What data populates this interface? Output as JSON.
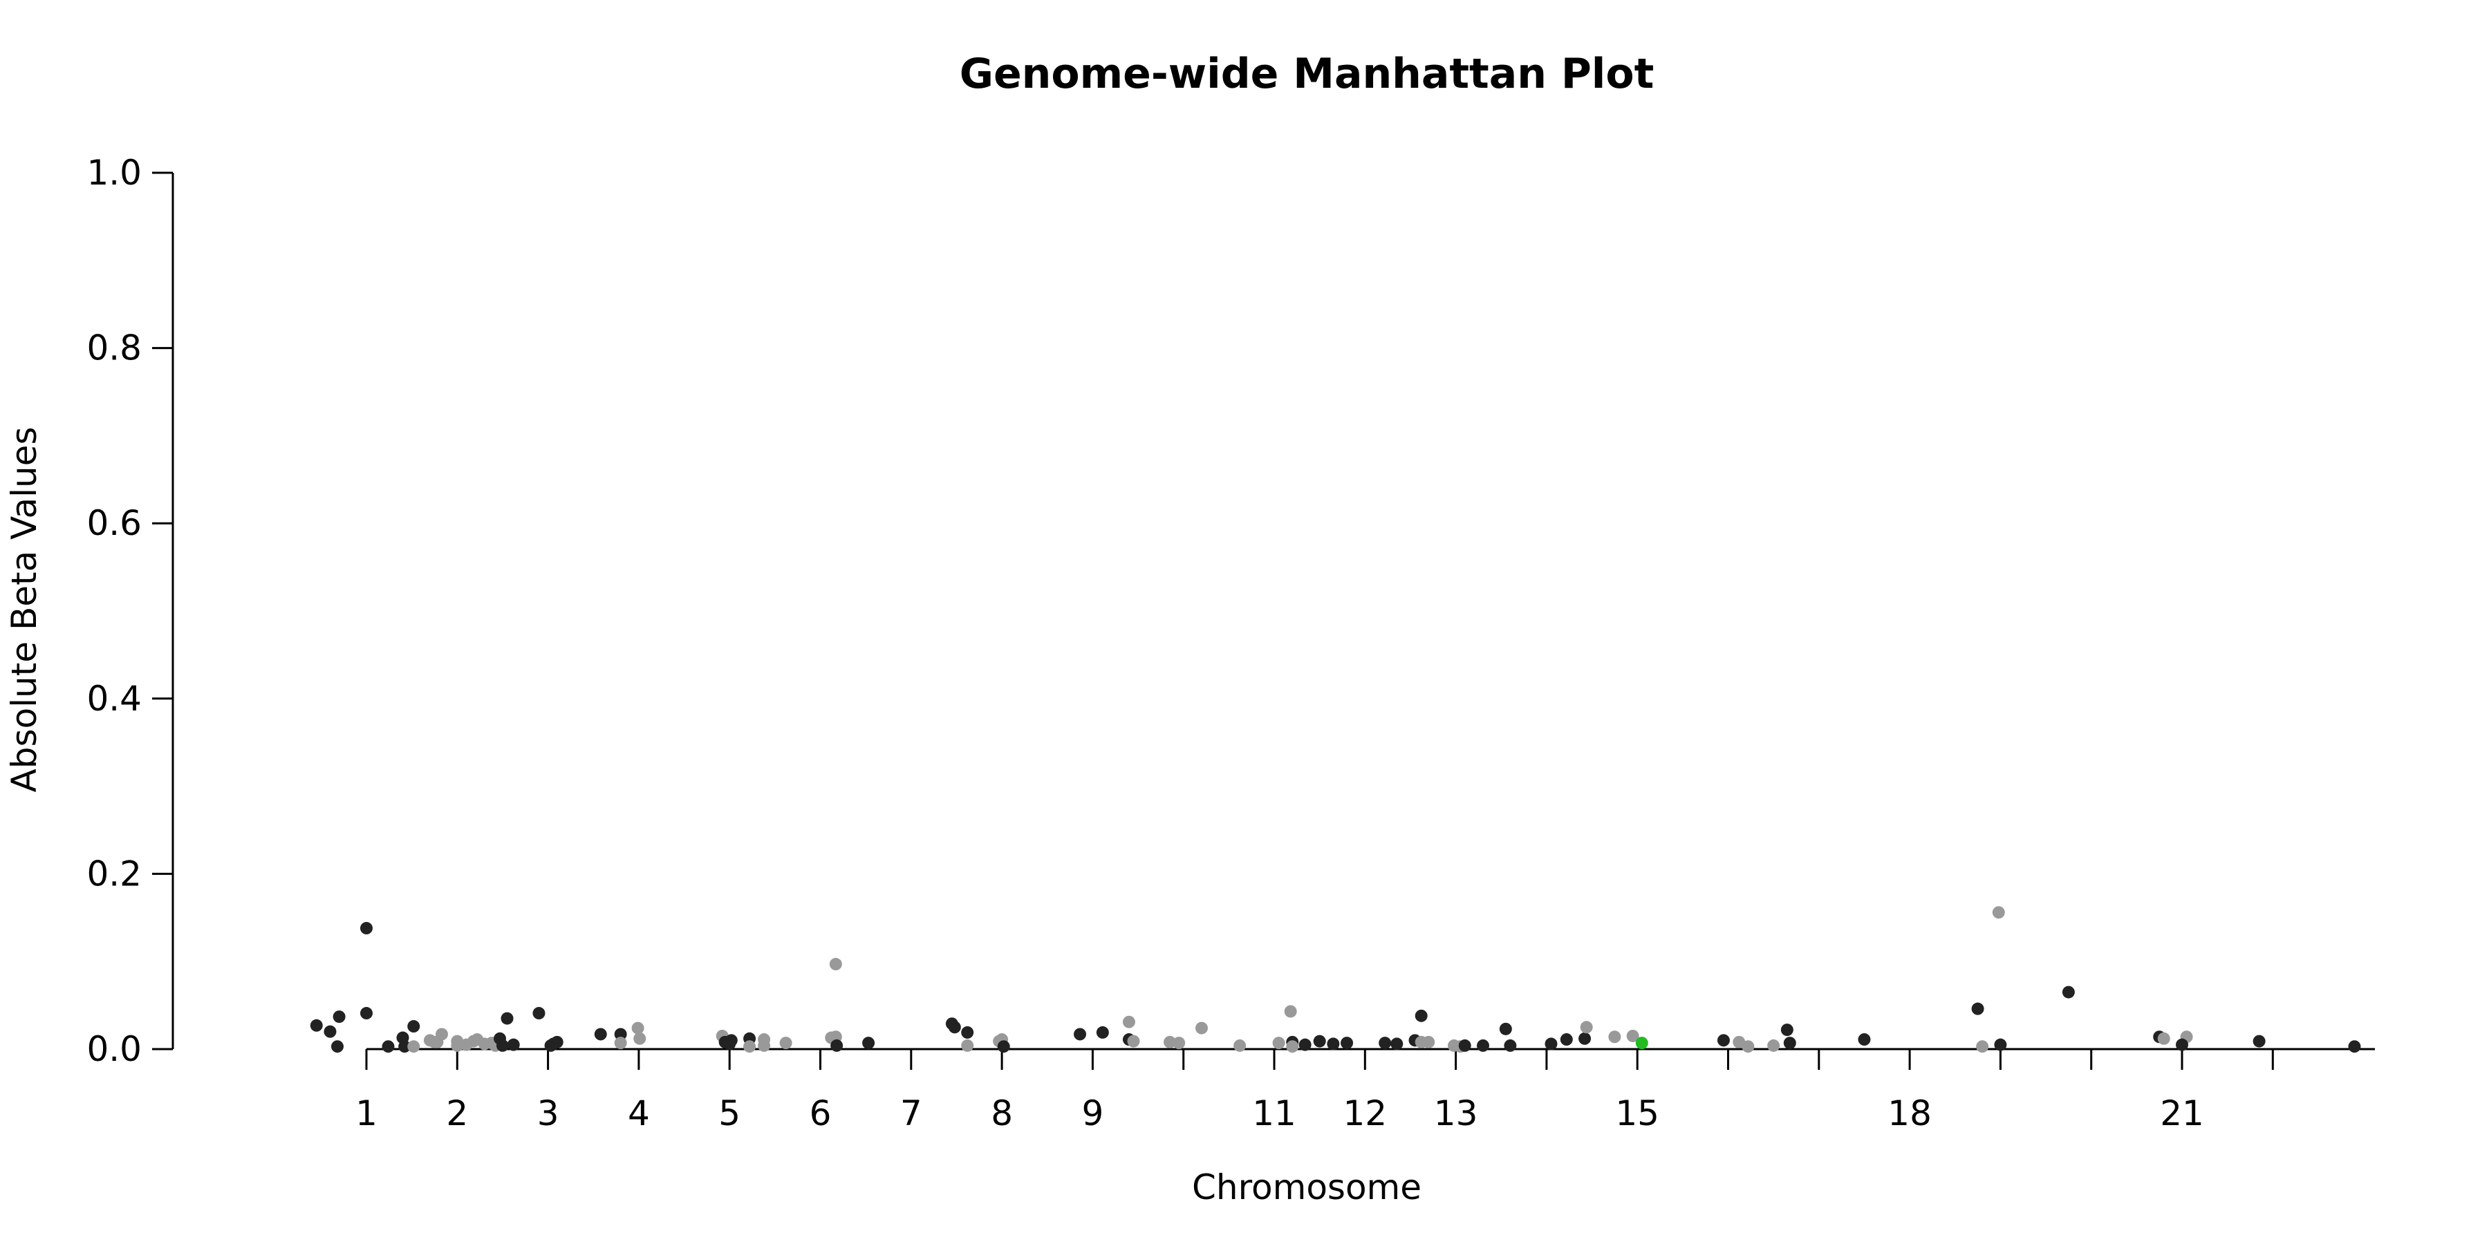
{
  "chart_data": {
    "type": "scatter",
    "title": "Genome-wide Manhattan Plot",
    "xlabel": "Chromosome",
    "ylabel": "Absolute Beta Values",
    "ylim": [
      0,
      1.0
    ],
    "y_ticks": [
      0.0,
      0.2,
      0.4,
      0.6,
      0.8,
      1.0
    ],
    "y_tick_labels": [
      "0.0",
      "0.2",
      "0.4",
      "0.6",
      "0.8",
      "1.0"
    ],
    "x_ticks": [
      {
        "chromosome": 1,
        "label": "1"
      },
      {
        "chromosome": 2,
        "label": "2"
      },
      {
        "chromosome": 3,
        "label": "3"
      },
      {
        "chromosome": 4,
        "label": "4"
      },
      {
        "chromosome": 5,
        "label": "5"
      },
      {
        "chromosome": 6,
        "label": "6"
      },
      {
        "chromosome": 7,
        "label": "7"
      },
      {
        "chromosome": 8,
        "label": "8"
      },
      {
        "chromosome": 9,
        "label": "9"
      },
      {
        "chromosome": 10,
        "label": ""
      },
      {
        "chromosome": 11,
        "label": "11"
      },
      {
        "chromosome": 12,
        "label": "12"
      },
      {
        "chromosome": 13,
        "label": "13"
      },
      {
        "chromosome": 14,
        "label": ""
      },
      {
        "chromosome": 15,
        "label": "15"
      },
      {
        "chromosome": 16,
        "label": ""
      },
      {
        "chromosome": 17,
        "label": ""
      },
      {
        "chromosome": 18,
        "label": "18"
      },
      {
        "chromosome": 19,
        "label": ""
      },
      {
        "chromosome": 20,
        "label": ""
      },
      {
        "chromosome": 21,
        "label": "21"
      },
      {
        "chromosome": 22,
        "label": ""
      }
    ],
    "colors": {
      "odd_chromosome": "#222222",
      "even_chromosome": "#999999",
      "highlight": "#22bb22"
    },
    "grid": false,
    "legend": "none",
    "points": [
      {
        "x": 0.45,
        "y": 0.027,
        "c": "odd"
      },
      {
        "x": 0.6,
        "y": 0.02,
        "c": "odd"
      },
      {
        "x": 0.7,
        "y": 0.037,
        "c": "odd"
      },
      {
        "x": 0.68,
        "y": 0.003,
        "c": "odd"
      },
      {
        "x": 1.0,
        "y": 0.138,
        "c": "odd"
      },
      {
        "x": 1.0,
        "y": 0.041,
        "c": "odd"
      },
      {
        "x": 1.24,
        "y": 0.003,
        "c": "odd"
      },
      {
        "x": 1.4,
        "y": 0.013,
        "c": "odd"
      },
      {
        "x": 1.42,
        "y": 0.003,
        "c": "odd"
      },
      {
        "x": 1.52,
        "y": 0.026,
        "c": "odd"
      },
      {
        "x": 1.52,
        "y": 0.003,
        "c": "even"
      },
      {
        "x": 1.7,
        "y": 0.01,
        "c": "even"
      },
      {
        "x": 1.75,
        "y": 0.008,
        "c": "even"
      },
      {
        "x": 1.78,
        "y": 0.008,
        "c": "even"
      },
      {
        "x": 1.83,
        "y": 0.017,
        "c": "even"
      },
      {
        "x": 2.0,
        "y": 0.009,
        "c": "even"
      },
      {
        "x": 2.0,
        "y": 0.004,
        "c": "even"
      },
      {
        "x": 2.1,
        "y": 0.005,
        "c": "even"
      },
      {
        "x": 2.18,
        "y": 0.009,
        "c": "even"
      },
      {
        "x": 2.22,
        "y": 0.011,
        "c": "even"
      },
      {
        "x": 2.3,
        "y": 0.006,
        "c": "even"
      },
      {
        "x": 2.38,
        "y": 0.007,
        "c": "even"
      },
      {
        "x": 2.42,
        "y": 0.004,
        "c": "even"
      },
      {
        "x": 2.47,
        "y": 0.012,
        "c": "odd"
      },
      {
        "x": 2.5,
        "y": 0.004,
        "c": "odd"
      },
      {
        "x": 2.62,
        "y": 0.005,
        "c": "odd"
      },
      {
        "x": 2.55,
        "y": 0.035,
        "c": "odd"
      },
      {
        "x": 2.9,
        "y": 0.041,
        "c": "odd"
      },
      {
        "x": 3.03,
        "y": 0.004,
        "c": "odd"
      },
      {
        "x": 3.06,
        "y": 0.006,
        "c": "odd"
      },
      {
        "x": 3.1,
        "y": 0.008,
        "c": "odd"
      },
      {
        "x": 3.58,
        "y": 0.017,
        "c": "odd"
      },
      {
        "x": 3.8,
        "y": 0.017,
        "c": "odd"
      },
      {
        "x": 3.8,
        "y": 0.007,
        "c": "even"
      },
      {
        "x": 3.99,
        "y": 0.024,
        "c": "even"
      },
      {
        "x": 4.01,
        "y": 0.012,
        "c": "even"
      },
      {
        "x": 4.92,
        "y": 0.015,
        "c": "even"
      },
      {
        "x": 4.95,
        "y": 0.008,
        "c": "odd"
      },
      {
        "x": 5.0,
        "y": 0.006,
        "c": "odd"
      },
      {
        "x": 5.02,
        "y": 0.01,
        "c": "odd"
      },
      {
        "x": 5.22,
        "y": 0.012,
        "c": "odd"
      },
      {
        "x": 5.22,
        "y": 0.003,
        "c": "even"
      },
      {
        "x": 5.38,
        "y": 0.011,
        "c": "even"
      },
      {
        "x": 5.38,
        "y": 0.004,
        "c": "even"
      },
      {
        "x": 5.62,
        "y": 0.007,
        "c": "even"
      },
      {
        "x": 6.12,
        "y": 0.013,
        "c": "even"
      },
      {
        "x": 6.17,
        "y": 0.014,
        "c": "even"
      },
      {
        "x": 6.17,
        "y": 0.097,
        "c": "even"
      },
      {
        "x": 6.18,
        "y": 0.004,
        "c": "odd"
      },
      {
        "x": 6.53,
        "y": 0.007,
        "c": "odd"
      },
      {
        "x": 7.45,
        "y": 0.029,
        "c": "odd"
      },
      {
        "x": 7.48,
        "y": 0.025,
        "c": "odd"
      },
      {
        "x": 7.62,
        "y": 0.019,
        "c": "odd"
      },
      {
        "x": 7.62,
        "y": 0.004,
        "c": "even"
      },
      {
        "x": 7.97,
        "y": 0.009,
        "c": "even"
      },
      {
        "x": 8.0,
        "y": 0.011,
        "c": "even"
      },
      {
        "x": 8.02,
        "y": 0.003,
        "c": "odd"
      },
      {
        "x": 8.86,
        "y": 0.017,
        "c": "odd"
      },
      {
        "x": 9.11,
        "y": 0.019,
        "c": "odd"
      },
      {
        "x": 9.4,
        "y": 0.031,
        "c": "even"
      },
      {
        "x": 9.4,
        "y": 0.011,
        "c": "odd"
      },
      {
        "x": 9.45,
        "y": 0.009,
        "c": "even"
      },
      {
        "x": 9.85,
        "y": 0.008,
        "c": "even"
      },
      {
        "x": 9.95,
        "y": 0.007,
        "c": "even"
      },
      {
        "x": 10.2,
        "y": 0.024,
        "c": "even"
      },
      {
        "x": 10.62,
        "y": 0.004,
        "c": "even"
      },
      {
        "x": 11.05,
        "y": 0.007,
        "c": "even"
      },
      {
        "x": 11.18,
        "y": 0.043,
        "c": "even"
      },
      {
        "x": 11.2,
        "y": 0.008,
        "c": "odd"
      },
      {
        "x": 11.2,
        "y": 0.003,
        "c": "even"
      },
      {
        "x": 11.34,
        "y": 0.005,
        "c": "odd"
      },
      {
        "x": 11.5,
        "y": 0.009,
        "c": "odd"
      },
      {
        "x": 11.65,
        "y": 0.006,
        "c": "odd"
      },
      {
        "x": 11.8,
        "y": 0.007,
        "c": "odd"
      },
      {
        "x": 12.22,
        "y": 0.007,
        "c": "odd"
      },
      {
        "x": 12.35,
        "y": 0.006,
        "c": "odd"
      },
      {
        "x": 12.55,
        "y": 0.01,
        "c": "odd"
      },
      {
        "x": 12.62,
        "y": 0.038,
        "c": "odd"
      },
      {
        "x": 12.62,
        "y": 0.008,
        "c": "even"
      },
      {
        "x": 12.7,
        "y": 0.008,
        "c": "even"
      },
      {
        "x": 12.98,
        "y": 0.004,
        "c": "even"
      },
      {
        "x": 13.05,
        "y": 0.003,
        "c": "even"
      },
      {
        "x": 13.1,
        "y": 0.004,
        "c": "odd"
      },
      {
        "x": 13.3,
        "y": 0.004,
        "c": "odd"
      },
      {
        "x": 13.55,
        "y": 0.023,
        "c": "odd"
      },
      {
        "x": 13.6,
        "y": 0.004,
        "c": "odd"
      },
      {
        "x": 14.05,
        "y": 0.006,
        "c": "odd"
      },
      {
        "x": 14.22,
        "y": 0.011,
        "c": "odd"
      },
      {
        "x": 14.42,
        "y": 0.012,
        "c": "odd"
      },
      {
        "x": 14.44,
        "y": 0.025,
        "c": "even"
      },
      {
        "x": 14.75,
        "y": 0.014,
        "c": "even"
      },
      {
        "x": 14.95,
        "y": 0.015,
        "c": "even"
      },
      {
        "x": 15.05,
        "y": 0.007,
        "c": "highlight"
      },
      {
        "x": 15.95,
        "y": 0.01,
        "c": "odd"
      },
      {
        "x": 16.12,
        "y": 0.008,
        "c": "even"
      },
      {
        "x": 16.22,
        "y": 0.003,
        "c": "even"
      },
      {
        "x": 16.5,
        "y": 0.004,
        "c": "even"
      },
      {
        "x": 16.65,
        "y": 0.022,
        "c": "odd"
      },
      {
        "x": 16.68,
        "y": 0.007,
        "c": "odd"
      },
      {
        "x": 17.5,
        "y": 0.011,
        "c": "odd"
      },
      {
        "x": 18.75,
        "y": 0.046,
        "c": "odd"
      },
      {
        "x": 18.8,
        "y": 0.003,
        "c": "even"
      },
      {
        "x": 18.98,
        "y": 0.156,
        "c": "even"
      },
      {
        "x": 19.0,
        "y": 0.005,
        "c": "odd"
      },
      {
        "x": 19.75,
        "y": 0.065,
        "c": "odd"
      },
      {
        "x": 20.75,
        "y": 0.014,
        "c": "odd"
      },
      {
        "x": 20.8,
        "y": 0.012,
        "c": "even"
      },
      {
        "x": 21.05,
        "y": 0.014,
        "c": "even"
      },
      {
        "x": 21.0,
        "y": 0.005,
        "c": "odd"
      },
      {
        "x": 21.85,
        "y": 0.009,
        "c": "odd"
      },
      {
        "x": 22.9,
        "y": 0.003,
        "c": "odd"
      }
    ]
  }
}
